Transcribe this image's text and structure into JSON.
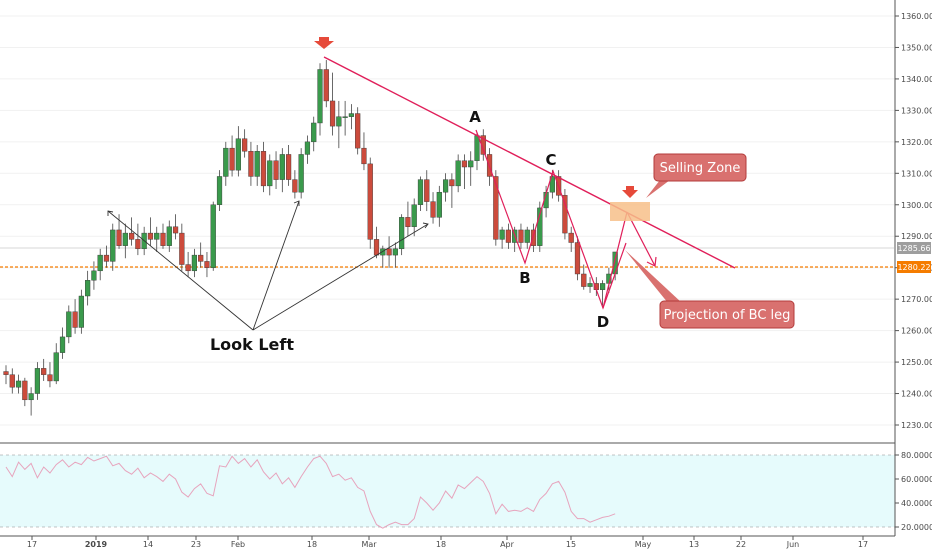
{
  "chart_data": {
    "type": "candlestick",
    "price_axis": {
      "ticks": [
        "1360.00",
        "1350.00",
        "1340.00",
        "1330.00",
        "1320.00",
        "1310.00",
        "1300.00",
        "1290.00",
        "1280.00",
        "1270.00",
        "1260.00",
        "1250.00",
        "1240.00",
        "1230.00"
      ],
      "range": [
        1225,
        1363
      ]
    },
    "time_axis": {
      "labels": [
        "17",
        "2019",
        "14",
        "23",
        "Feb",
        "18",
        "Mar",
        "18",
        "Apr",
        "15",
        "May",
        "13",
        "22",
        "Jun",
        "17"
      ]
    },
    "price_tags": {
      "last_price": "1285.66",
      "support_level": "1280.22"
    },
    "annotations": {
      "point_a": "A",
      "point_b": "B",
      "point_c": "C",
      "point_d": "D",
      "look_left": "Look Left",
      "selling_zone": "Selling Zone",
      "projection": "Projection of BC leg"
    },
    "candles": [
      [
        1247,
        1249,
        1243,
        1246
      ],
      [
        1246,
        1248,
        1240,
        1242
      ],
      [
        1242,
        1246,
        1240,
        1244
      ],
      [
        1244,
        1245,
        1236,
        1238
      ],
      [
        1238,
        1242,
        1233,
        1240
      ],
      [
        1240,
        1250,
        1238,
        1248
      ],
      [
        1248,
        1251,
        1244,
        1246
      ],
      [
        1246,
        1250,
        1242,
        1244
      ],
      [
        1244,
        1256,
        1243,
        1253
      ],
      [
        1253,
        1261,
        1251,
        1258
      ],
      [
        1258,
        1268,
        1256,
        1266
      ],
      [
        1266,
        1270,
        1259,
        1261
      ],
      [
        1261,
        1273,
        1259,
        1271
      ],
      [
        1271,
        1279,
        1268,
        1276
      ],
      [
        1276,
        1282,
        1273,
        1279
      ],
      [
        1279,
        1286,
        1276,
        1284
      ],
      [
        1284,
        1287,
        1280,
        1282
      ],
      [
        1282,
        1294,
        1279,
        1292
      ],
      [
        1292,
        1297,
        1286,
        1287
      ],
      [
        1287,
        1294,
        1283,
        1291
      ],
      [
        1291,
        1296,
        1287,
        1289
      ],
      [
        1289,
        1294,
        1284,
        1286
      ],
      [
        1286,
        1293,
        1284,
        1291
      ],
      [
        1291,
        1296,
        1287,
        1289
      ],
      [
        1289,
        1293,
        1285,
        1291
      ],
      [
        1291,
        1294,
        1286,
        1287
      ],
      [
        1287,
        1295,
        1285,
        1293
      ],
      [
        1293,
        1297,
        1289,
        1291
      ],
      [
        1291,
        1294,
        1279,
        1281
      ],
      [
        1281,
        1285,
        1277,
        1279
      ],
      [
        1279,
        1286,
        1277,
        1284
      ],
      [
        1284,
        1288,
        1280,
        1282
      ],
      [
        1282,
        1285,
        1277,
        1280
      ],
      [
        1280,
        1301,
        1279,
        1300
      ],
      [
        1300,
        1311,
        1298,
        1309
      ],
      [
        1309,
        1320,
        1306,
        1318
      ],
      [
        1318,
        1322,
        1309,
        1311
      ],
      [
        1311,
        1325,
        1309,
        1321
      ],
      [
        1321,
        1324,
        1315,
        1317
      ],
      [
        1317,
        1320,
        1306,
        1309
      ],
      [
        1309,
        1319,
        1306,
        1317
      ],
      [
        1317,
        1320,
        1304,
        1306
      ],
      [
        1306,
        1316,
        1303,
        1314
      ],
      [
        1314,
        1317,
        1305,
        1308
      ],
      [
        1308,
        1318,
        1304,
        1316
      ],
      [
        1316,
        1319,
        1306,
        1308
      ],
      [
        1308,
        1311,
        1302,
        1304
      ],
      [
        1304,
        1318,
        1302,
        1316
      ],
      [
        1316,
        1322,
        1313,
        1320
      ],
      [
        1320,
        1328,
        1317,
        1326
      ],
      [
        1326,
        1345,
        1322,
        1343
      ],
      [
        1343,
        1346,
        1331,
        1333
      ],
      [
        1333,
        1342,
        1322,
        1325
      ],
      [
        1325,
        1333,
        1318,
        1328
      ],
      [
        1328,
        1333,
        1322,
        1328
      ],
      [
        1328,
        1332,
        1324,
        1329
      ],
      [
        1329,
        1331,
        1316,
        1318
      ],
      [
        1318,
        1323,
        1311,
        1313
      ],
      [
        1313,
        1315,
        1286,
        1289
      ],
      [
        1289,
        1293,
        1283,
        1284
      ],
      [
        1284,
        1287,
        1280,
        1286
      ],
      [
        1286,
        1290,
        1280,
        1284
      ],
      [
        1284,
        1288,
        1280,
        1286
      ],
      [
        1286,
        1297,
        1284,
        1296
      ],
      [
        1296,
        1301,
        1290,
        1293
      ],
      [
        1293,
        1302,
        1290,
        1300
      ],
      [
        1300,
        1309,
        1298,
        1308
      ],
      [
        1308,
        1311,
        1298,
        1301
      ],
      [
        1301,
        1304,
        1294,
        1296
      ],
      [
        1296,
        1306,
        1293,
        1304
      ],
      [
        1304,
        1310,
        1301,
        1308
      ],
      [
        1308,
        1310,
        1299,
        1306
      ],
      [
        1306,
        1316,
        1304,
        1314
      ],
      [
        1314,
        1316,
        1305,
        1312
      ],
      [
        1312,
        1317,
        1306,
        1314
      ],
      [
        1314,
        1323,
        1311,
        1322
      ],
      [
        1322,
        1324,
        1314,
        1316
      ],
      [
        1316,
        1318,
        1306,
        1309
      ],
      [
        1309,
        1311,
        1287,
        1289
      ],
      [
        1289,
        1293,
        1286,
        1292
      ],
      [
        1292,
        1294,
        1286,
        1288
      ],
      [
        1288,
        1293,
        1285,
        1292
      ],
      [
        1292,
        1294,
        1286,
        1288
      ],
      [
        1288,
        1293,
        1286,
        1292
      ],
      [
        1292,
        1294,
        1285,
        1287
      ],
      [
        1287,
        1301,
        1285,
        1299
      ],
      [
        1299,
        1306,
        1296,
        1304
      ],
      [
        1304,
        1311,
        1302,
        1309
      ],
      [
        1309,
        1311,
        1301,
        1303
      ],
      [
        1303,
        1305,
        1289,
        1291
      ],
      [
        1291,
        1293,
        1285,
        1288
      ],
      [
        1288,
        1290,
        1276,
        1278
      ],
      [
        1278,
        1281,
        1273,
        1274
      ],
      [
        1274,
        1277,
        1272,
        1275
      ],
      [
        1275,
        1277,
        1271,
        1273
      ],
      [
        1273,
        1276,
        1268,
        1275
      ],
      [
        1275,
        1280,
        1272,
        1278
      ],
      [
        1278,
        1285,
        1276,
        1285
      ]
    ],
    "rsi": {
      "ticks": [
        "80.0000",
        "60.0000",
        "40.0000",
        "20.0000"
      ],
      "range": [
        15,
        88
      ],
      "band": [
        30,
        80
      ],
      "values": [
        70,
        62,
        74,
        68,
        73,
        61,
        70,
        65,
        72,
        76,
        70,
        74,
        72,
        78,
        75,
        77,
        79,
        71,
        73,
        67,
        64,
        69,
        61,
        65,
        62,
        58,
        64,
        60,
        49,
        45,
        52,
        56,
        48,
        46,
        71,
        70,
        79,
        73,
        77,
        70,
        76,
        66,
        60,
        65,
        56,
        61,
        53,
        62,
        70,
        77,
        79,
        73,
        62,
        64,
        59,
        61,
        53,
        50,
        33,
        22,
        19,
        22,
        24,
        22,
        22,
        27,
        45,
        40,
        34,
        40,
        50,
        44,
        55,
        52,
        57,
        62,
        58,
        48,
        31,
        39,
        33,
        34,
        33,
        36,
        33,
        43,
        48,
        56,
        58,
        49,
        33,
        27,
        27,
        24,
        26,
        28,
        29,
        31
      ]
    }
  }
}
